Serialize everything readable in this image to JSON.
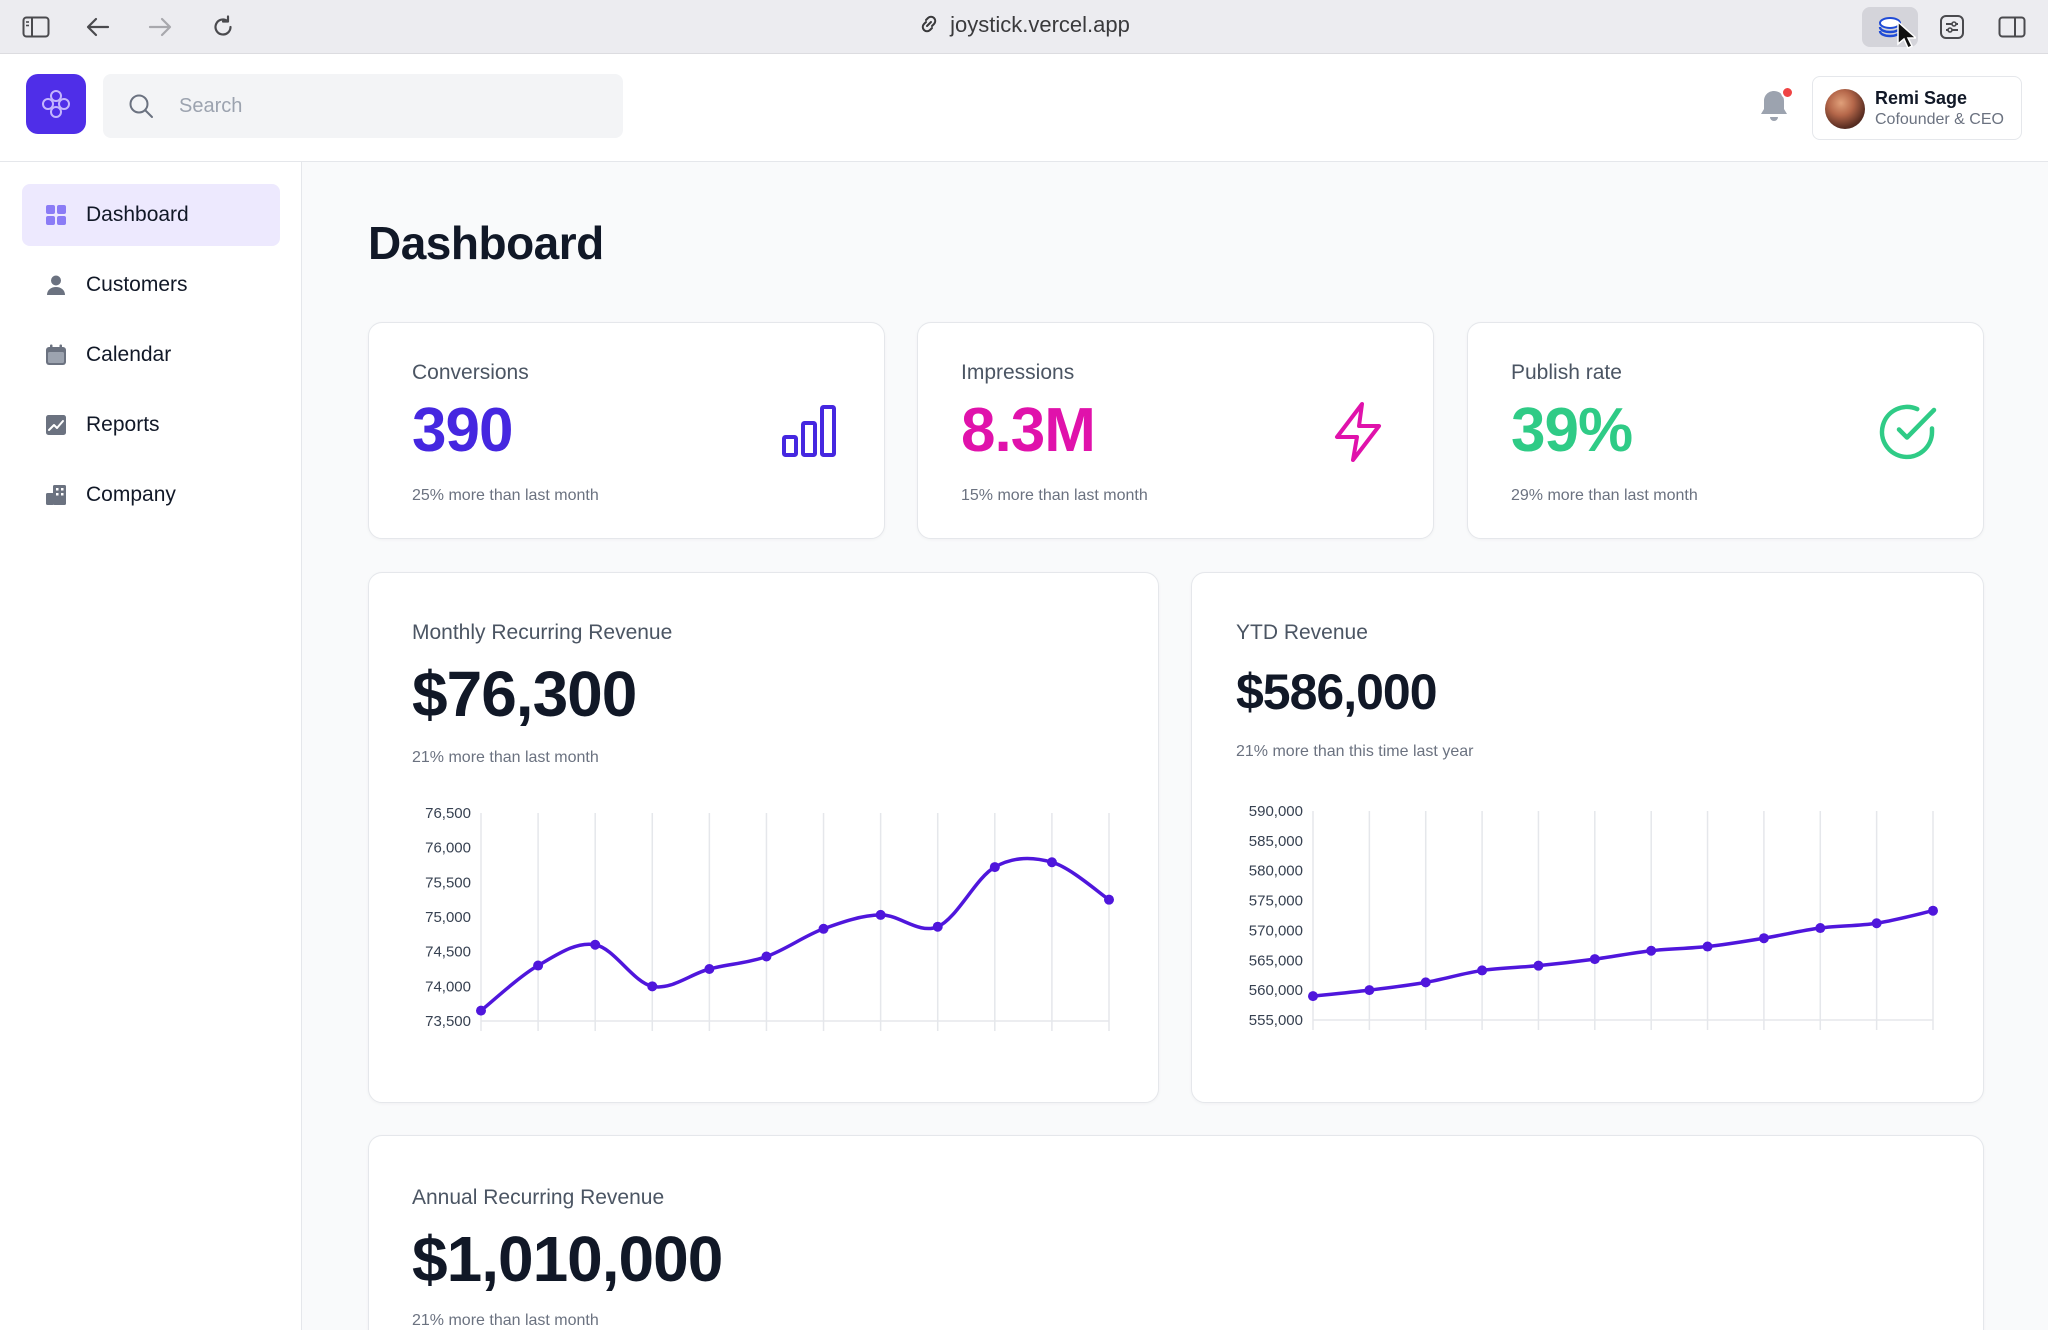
{
  "browser": {
    "url": "joystick.vercel.app"
  },
  "header": {
    "search_placeholder": "Search",
    "user": {
      "name": "Remi Sage",
      "role": "Cofounder & CEO"
    }
  },
  "sidebar": {
    "items": [
      {
        "label": "Dashboard",
        "icon": "grid-icon",
        "active": true
      },
      {
        "label": "Customers",
        "icon": "user-icon",
        "active": false
      },
      {
        "label": "Calendar",
        "icon": "calendar-icon",
        "active": false
      },
      {
        "label": "Reports",
        "icon": "chart-icon",
        "active": false
      },
      {
        "label": "Company",
        "icon": "building-icon",
        "active": false
      }
    ]
  },
  "page": {
    "title": "Dashboard"
  },
  "stats": [
    {
      "label": "Conversions",
      "value": "390",
      "sub": "25% more than last month",
      "color": "#4527e0",
      "icon": "bar-chart-icon"
    },
    {
      "label": "Impressions",
      "value": "8.3M",
      "sub": "15% more than last month",
      "color": "#e012ab",
      "icon": "lightning-icon"
    },
    {
      "label": "Publish rate",
      "value": "39%",
      "sub": "29% more than last month",
      "color": "#2fcb86",
      "icon": "check-circle-icon"
    }
  ],
  "mrr": {
    "label": "Monthly Recurring Revenue",
    "value": "$76,300",
    "sub": "21% more than last month"
  },
  "ytd": {
    "label": "YTD Revenue",
    "value": "$586,000",
    "sub": "21% more than this time last year"
  },
  "arr": {
    "label": "Annual Recurring Revenue",
    "value": "$1,010,000",
    "sub": "21% more than last month"
  },
  "chart_data": [
    {
      "type": "line",
      "ylim": [
        73500,
        76500
      ],
      "yticks": [
        "76,500",
        "76,000",
        "75,500",
        "75,000",
        "74,500",
        "74,000",
        "73,500"
      ],
      "ytick_values": [
        76500,
        76000,
        75500,
        75000,
        74500,
        74000,
        73500
      ],
      "x": [
        1,
        2,
        3,
        4,
        5,
        6,
        7,
        8,
        9,
        10,
        11,
        12
      ],
      "values": [
        73650,
        74300,
        74600,
        74000,
        74250,
        74430,
        74830,
        75030,
        74860,
        75720,
        75790,
        75250
      ],
      "color": "#4f16dc",
      "grid": "vertical"
    },
    {
      "type": "line",
      "ylim": [
        555000,
        590000
      ],
      "yticks": [
        "590,000",
        "585,000",
        "580,000",
        "575,000",
        "570,000",
        "565,000",
        "560,000",
        "555,000"
      ],
      "ytick_values": [
        590000,
        585000,
        580000,
        575000,
        570000,
        565000,
        560000,
        555000
      ],
      "x": [
        1,
        2,
        3,
        4,
        5,
        6,
        7,
        8,
        9,
        10,
        11,
        12
      ],
      "values": [
        559000,
        560000,
        561300,
        563300,
        564100,
        565200,
        566600,
        567300,
        568700,
        570400,
        571200,
        573300
      ],
      "color": "#4f16dc",
      "grid": "vertical"
    }
  ]
}
